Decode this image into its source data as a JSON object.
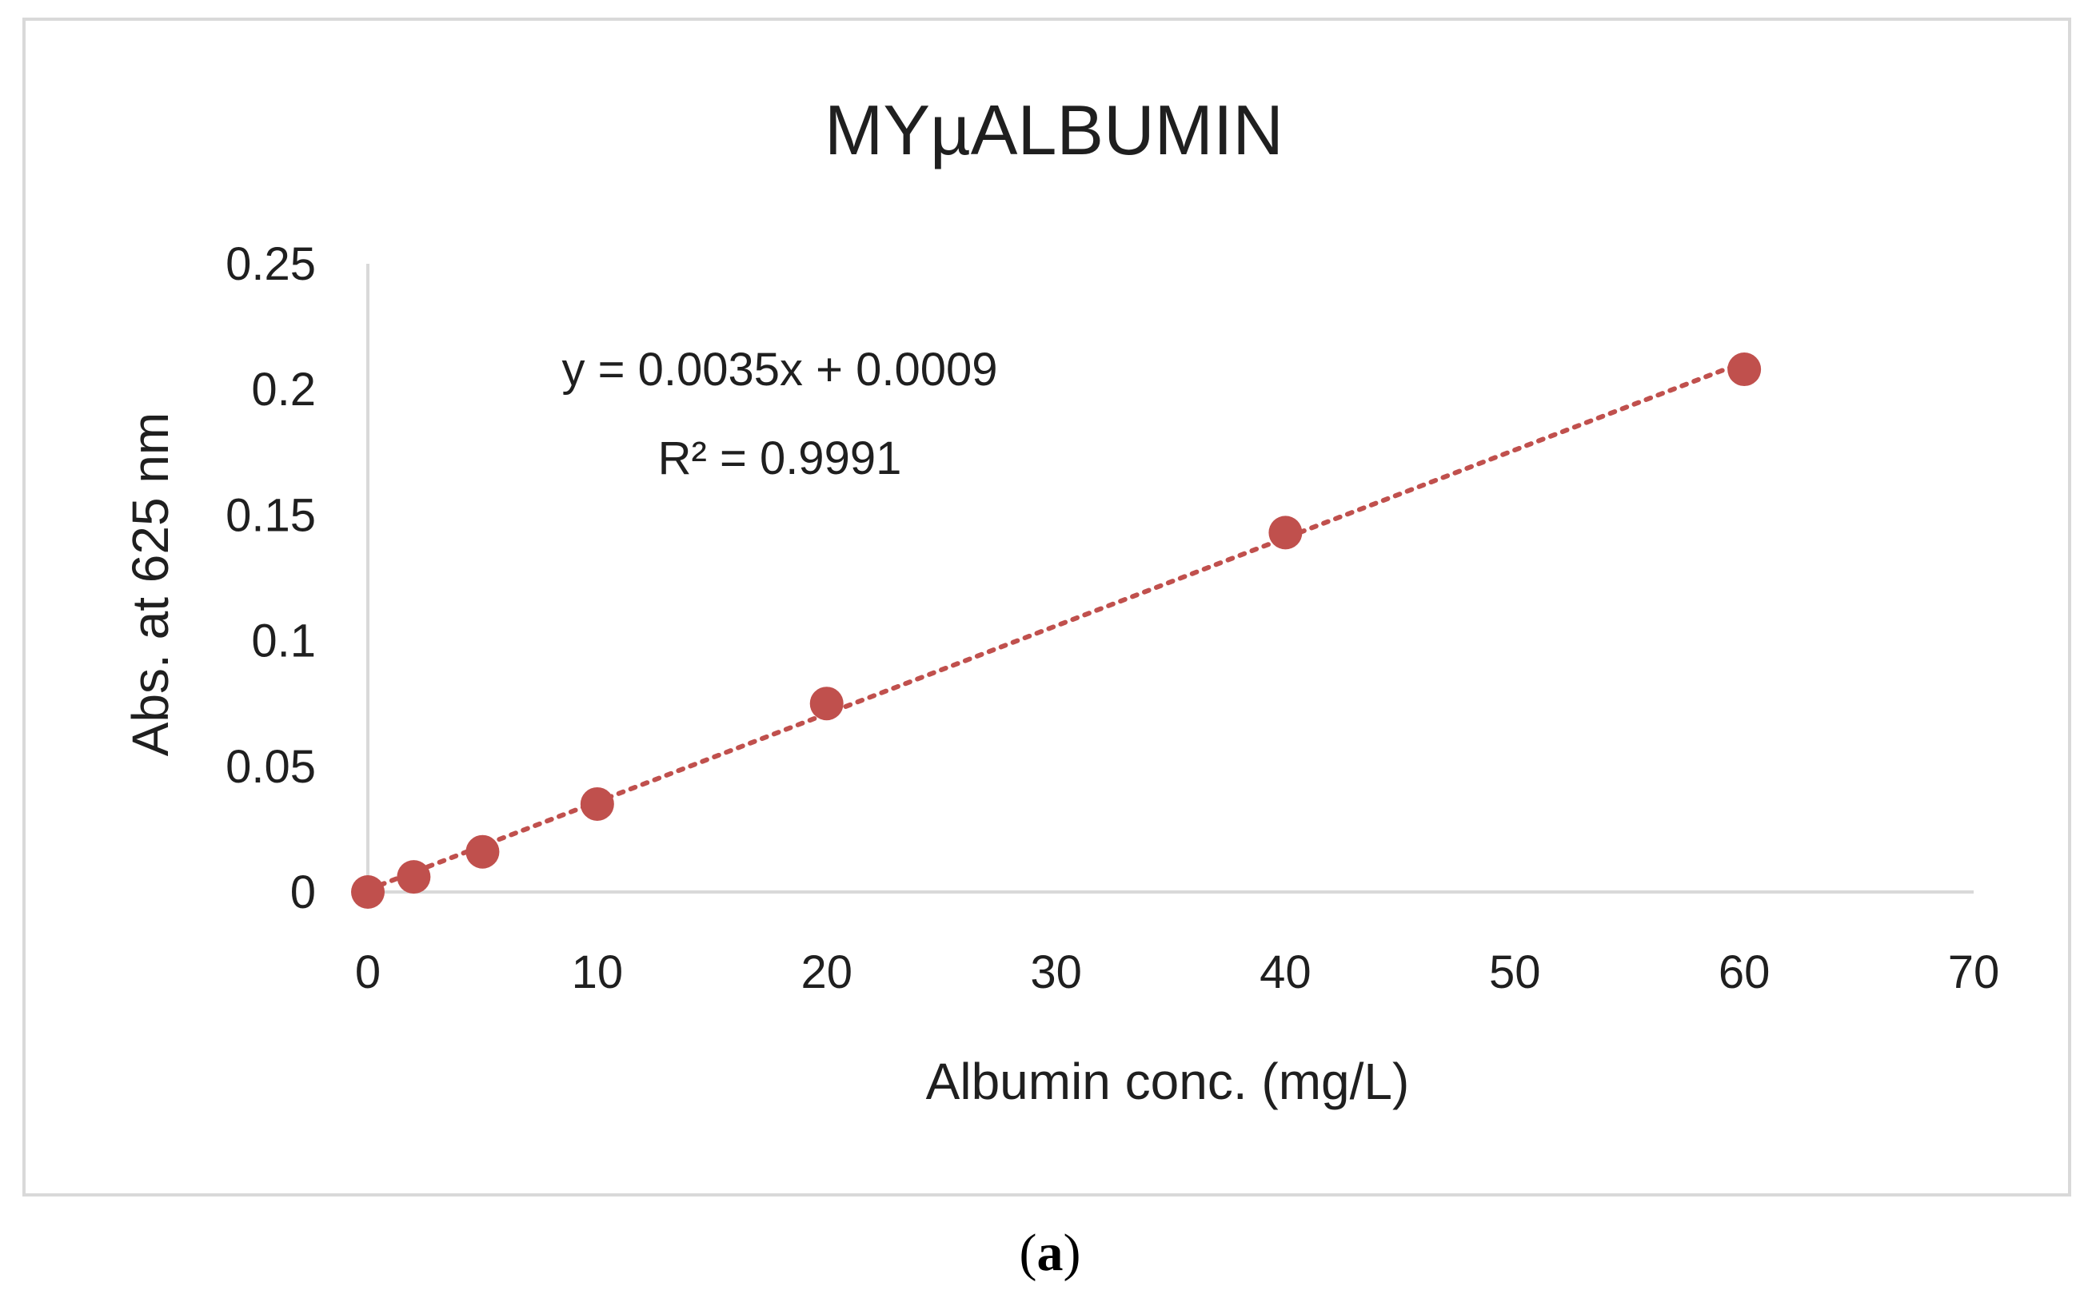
{
  "chart_data": {
    "type": "scatter",
    "title": "MYµALBUMIN",
    "xlabel": "Albumin conc. (mg/L)",
    "ylabel": "Abs. at 625 nm",
    "xlim": [
      0,
      70
    ],
    "ylim": [
      0,
      0.25
    ],
    "x_ticks": [
      "0",
      "10",
      "20",
      "30",
      "40",
      "50",
      "60",
      "70"
    ],
    "y_ticks": [
      "0",
      "0.05",
      "0.1",
      "0.15",
      "0.2",
      "0.25"
    ],
    "grid": false,
    "legend": "none",
    "series": [
      {
        "points": [
          {
            "x": 0,
            "y": 0.0
          },
          {
            "x": 2,
            "y": 0.006
          },
          {
            "x": 5,
            "y": 0.016
          },
          {
            "x": 10,
            "y": 0.035
          },
          {
            "x": 20,
            "y": 0.075
          },
          {
            "x": 40,
            "y": 0.143
          },
          {
            "x": 60,
            "y": 0.208
          }
        ],
        "color": "#c0504d"
      }
    ],
    "trendline": {
      "type": "linear",
      "slope": 0.0035,
      "intercept": 0.0009,
      "x_range": [
        0,
        60
      ],
      "style": "dotted",
      "color": "#c0504d",
      "equation_label": "y = 0.0035x + 0.0009",
      "r2_label": "R² = 0.9991"
    }
  },
  "caption": {
    "open": "(",
    "letter": "a",
    "close": ")"
  }
}
